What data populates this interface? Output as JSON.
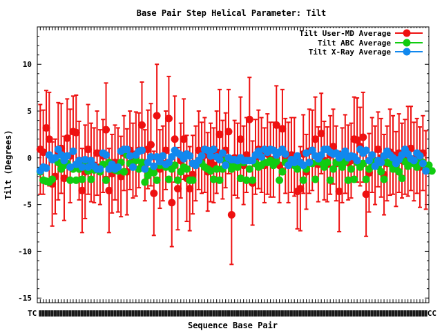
{
  "chart_data": {
    "type": "scatter",
    "title": "Base Pair Step Helical Parameter: Tilt",
    "xlabel": "Sequence Base Pair",
    "ylabel": "Tilt (Degrees)",
    "ylim": [
      -15.5,
      14
    ],
    "xlim": [
      0,
      131
    ],
    "yticks": [
      -15,
      -10,
      -5,
      0,
      5,
      10
    ],
    "x_tick_label_left": "TC",
    "x_tick_label_right": "CC",
    "legend_position": "top-right",
    "colors": {
      "user_md": "#ee1111",
      "abc": "#11cc11",
      "xray": "#1188ee"
    },
    "series": [
      {
        "name": "Tilt User-MD Average",
        "color": "#ee1111",
        "error_bars": true,
        "values": [
          0.9,
          0.6,
          3.2,
          2.0,
          -2.8,
          -2.0,
          0.7,
          1.0,
          -2.2,
          2.1,
          0.2,
          2.8,
          2.7,
          -0.3,
          -3.5,
          -1.5,
          0.9,
          -0.5,
          -0.8,
          0.5,
          -1.0,
          0.2,
          3.0,
          -3.5,
          -1.7,
          -0.5,
          -1.3,
          -2.0,
          0.5,
          -1.5,
          0.8,
          -0.3,
          0.4,
          0.8,
          3.5,
          -0.8,
          0.9,
          1.4,
          -3.8,
          4.5,
          -1.2,
          -0.6,
          0.8,
          4.2,
          -4.8,
          2.0,
          -3.3,
          -0.3,
          2.0,
          -2.2,
          -3.3,
          -1.8,
          -0.6,
          0.8,
          0.0,
          0.3,
          -1.5,
          -0.5,
          -0.8,
          0.6,
          2.5,
          -0.2,
          0.8,
          2.8,
          -6.1,
          0.0,
          -0.3,
          2.0,
          -0.8,
          0.3,
          4.1,
          -2.7,
          0.1,
          0.9,
          0.3,
          -0.8,
          0.4,
          -0.2,
          -0.2,
          3.5,
          -0.8,
          3.1,
          0.2,
          -0.5,
          0.3,
          0.1,
          -3.6,
          -3.3,
          0.4,
          -1.5,
          0.7,
          0.8,
          2.0,
          -0.7,
          2.6,
          -0.3,
          -0.7,
          0.3,
          1.2,
          -0.6,
          -3.6,
          -0.8,
          0.4,
          -0.5,
          -0.3,
          2.0,
          1.9,
          1.2,
          2.2,
          -3.9,
          -1.6,
          0.3,
          -0.8,
          0.9,
          0.0,
          -1.8,
          -0.6,
          0.6,
          0.3,
          -1.2,
          0.5,
          -0.3,
          0.1,
          0.7,
          1.0,
          -0.4,
          0.2,
          -1.0,
          0.5,
          -1.3
        ],
        "errors": [
          4.8,
          4.5,
          4.0,
          5.0,
          4.5,
          4.0,
          5.2,
          4.8,
          4.5,
          4.2,
          5.0,
          3.8,
          4.0,
          4.2,
          4.5,
          5.0,
          4.8,
          4.2,
          4.0,
          4.5,
          4.0,
          3.9,
          5.0,
          4.5,
          4.2,
          4.0,
          4.5,
          4.3,
          4.0,
          4.6,
          4.2,
          4.0,
          4.5,
          4.0,
          4.6,
          3.8,
          4.2,
          4.4,
          4.5,
          5.5,
          4.2,
          4.0,
          4.2,
          4.5,
          4.7,
          4.6,
          4.4,
          4.0,
          4.3,
          4.6,
          4.5,
          4.2,
          4.0,
          4.2,
          3.8,
          4.0,
          4.2,
          4.2,
          4.0,
          4.4,
          4.8,
          4.2,
          4.0,
          4.5,
          5.3,
          4.0,
          4.0,
          4.5,
          4.2,
          4.0,
          4.5,
          4.5,
          4.0,
          4.2,
          4.0,
          4.0,
          4.3,
          4.0,
          4.0,
          4.2,
          4.0,
          4.2,
          4.0,
          4.3,
          4.0,
          4.2,
          4.0,
          4.5,
          4.2,
          4.0,
          4.5,
          4.3,
          4.5,
          4.0,
          4.3,
          4.2,
          4.0,
          4.2,
          4.0,
          4.0,
          4.3,
          4.0,
          4.2,
          4.0,
          4.0,
          4.5,
          4.5,
          4.2,
          4.8,
          4.5,
          4.2,
          4.0,
          4.2,
          4.0,
          4.2,
          4.3,
          4.0,
          4.6,
          4.2,
          4.0,
          4.2,
          4.0,
          4.0,
          4.8,
          4.5,
          4.2,
          4.0,
          4.3,
          4.0,
          4.2
        ]
      },
      {
        "name": "Tilt ABC Average",
        "color": "#11cc11",
        "error_bars": false,
        "values": [
          -1.5,
          -2.4,
          -2.5,
          -2.6,
          -2.3,
          -0.2,
          -0.5,
          -1.2,
          -0.8,
          -0.6,
          -2.4,
          -1.2,
          -2.4,
          -1.2,
          -2.3,
          -0.3,
          -1.4,
          -2.3,
          -1.3,
          -1.2,
          -1.5,
          -0.7,
          -2.4,
          -0.5,
          -1.2,
          -1.3,
          -1.4,
          -0.5,
          -1.5,
          0.3,
          -0.6,
          -1.0,
          -0.3,
          -1.2,
          -0.5,
          -2.6,
          -1.9,
          -1.4,
          -1.6,
          -2.4,
          -0.8,
          -0.7,
          -1.0,
          -2.3,
          -1.2,
          -0.8,
          -2.4,
          -1.5,
          -1.0,
          -1.2,
          -2.4,
          -2.4,
          -0.8,
          -0.3,
          -0.6,
          -1.0,
          -1.2,
          -1.4,
          -2.3,
          -1.2,
          -2.4,
          -1.2,
          -0.3,
          -0.5,
          -1.2,
          -0.7,
          -1.0,
          -2.2,
          -0.5,
          -2.4,
          -1.2,
          -2.4,
          -0.6,
          -1.0,
          -0.8,
          -0.5,
          -0.5,
          -0.3,
          -0.8,
          -0.4,
          -2.4,
          -1.5,
          -0.5,
          -0.6,
          -0.3,
          -0.8,
          -1.2,
          -0.7,
          -2.4,
          -1.2,
          -0.5,
          -0.6,
          -2.3,
          -0.4,
          -0.5,
          -1.0,
          -0.5,
          -2.4,
          -1.2,
          -0.5,
          -0.5,
          -1.0,
          -0.4,
          -2.4,
          -1.2,
          -2.3,
          -0.5,
          -1.0,
          -0.6,
          -2.3,
          -1.2,
          -0.6,
          -0.4,
          -0.9,
          -1.5,
          -2.3,
          -0.5,
          -0.6,
          -1.2,
          -0.8,
          -1.5,
          -2.2,
          -0.4,
          -0.9,
          -0.5,
          -0.6,
          -1.0,
          -0.3,
          -0.5,
          -1.2,
          -0.8,
          -1.4
        ],
        "errors": []
      },
      {
        "name": "Tilt X-Ray Average",
        "color": "#1188ee",
        "error_bars": false,
        "values": [
          -1.4,
          -1.0,
          -1.1,
          0.3,
          -0.2,
          0.0,
          0.9,
          0.3,
          -0.3,
          0.2,
          -1.0,
          0.7,
          -0.7,
          -0.3,
          -1.0,
          -0.2,
          -1.0,
          -0.3,
          -0.9,
          -1.2,
          -1.2,
          0.5,
          0.3,
          -1.2,
          -0.7,
          -1.2,
          -1.0,
          0.7,
          0.9,
          0.9,
          0.2,
          -1.0,
          0.3,
          0.7,
          0.8,
          -1.2,
          -0.5,
          0.1,
          -0.9,
          0.1,
          -0.4,
          0.2,
          -0.7,
          -0.5,
          0.1,
          0.8,
          0.5,
          0.3,
          -0.1,
          0.4,
          0.2,
          -0.6,
          -0.8,
          -0.3,
          0.2,
          0.9,
          0.8,
          0.2,
          0.9,
          0.1,
          -0.2,
          0.5,
          -0.8,
          0.0,
          -0.2,
          -0.2,
          -0.3,
          0.0,
          -0.3,
          -0.3,
          -0.3,
          -0.3,
          0.3,
          0.7,
          0.1,
          0.9,
          0.6,
          0.9,
          0.8,
          0.3,
          0.6,
          0.9,
          0.4,
          -0.8,
          -0.2,
          -0.5,
          0.2,
          -0.5,
          -0.8,
          0.5,
          -0.5,
          0.8,
          0.2,
          -0.1,
          0.3,
          0.9,
          0.9,
          0.6,
          0.4,
          0.5,
          0.0,
          0.3,
          0.7,
          0.0,
          0.2,
          0.1,
          -0.3,
          0.9,
          0.5,
          0.8,
          -0.3,
          0.3,
          -0.9,
          -0.3,
          -0.5,
          0.2,
          0.7,
          0.3,
          0.0,
          -0.6,
          -0.2,
          0.3,
          0.9,
          0.4,
          -0.1,
          -0.3,
          0.5,
          0.2,
          -0.6,
          -1.4
        ],
        "errors": []
      }
    ]
  }
}
